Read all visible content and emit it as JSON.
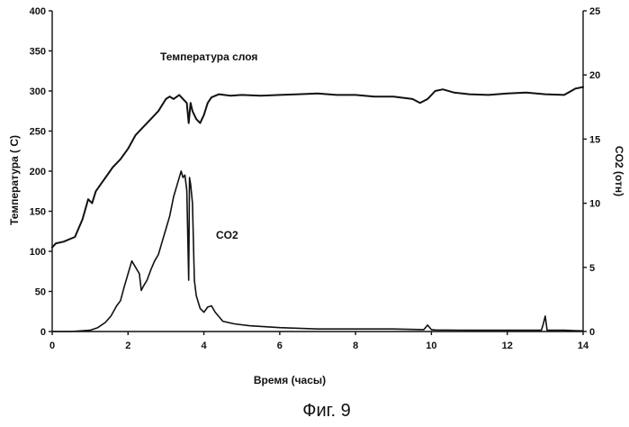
{
  "figure_caption": "Фиг. 9",
  "chart_data": {
    "type": "line",
    "title": "",
    "xlabel": "Время (часы)",
    "ylabel_left": "Температура ( С)",
    "ylabel_right": "CO2 (отн)",
    "xlim": [
      0,
      14
    ],
    "ylim_left": [
      0,
      400
    ],
    "ylim_right": [
      0,
      25
    ],
    "x_ticks": [
      "0",
      "2",
      "4",
      "6",
      "8",
      "10",
      "12",
      "14"
    ],
    "y_left_ticks": [
      "0",
      "50",
      "100",
      "150",
      "200",
      "250",
      "300",
      "350",
      "400"
    ],
    "y_right_ticks": [
      "0",
      "5",
      "10",
      "15",
      "20",
      "25"
    ],
    "grid": false,
    "annotations": [
      {
        "text": "Температура слоя",
        "series": "temperature"
      },
      {
        "text": "CO2",
        "series": "co2"
      }
    ],
    "series": [
      {
        "id": "temperature",
        "axis": "left",
        "x": [
          0,
          0.1,
          0.3,
          0.6,
          0.8,
          0.95,
          1.05,
          1.15,
          1.3,
          1.45,
          1.6,
          1.8,
          2.0,
          2.2,
          2.4,
          2.6,
          2.8,
          3.0,
          3.1,
          3.2,
          3.35,
          3.45,
          3.55,
          3.6,
          3.65,
          3.7,
          3.8,
          3.9,
          4.0,
          4.1,
          4.2,
          4.4,
          4.7,
          5.0,
          5.5,
          6.0,
          6.5,
          7.0,
          7.5,
          8.0,
          8.5,
          9.0,
          9.5,
          9.7,
          9.9,
          10.1,
          10.3,
          10.6,
          11.0,
          11.5,
          12.0,
          12.5,
          13.0,
          13.5,
          13.8,
          14.0
        ],
        "y": [
          105,
          110,
          112,
          118,
          140,
          165,
          160,
          175,
          185,
          195,
          205,
          215,
          228,
          245,
          255,
          265,
          275,
          290,
          293,
          290,
          295,
          290,
          285,
          260,
          285,
          275,
          265,
          260,
          270,
          285,
          292,
          296,
          294,
          295,
          294,
          295,
          296,
          297,
          295,
          295,
          293,
          293,
          290,
          285,
          290,
          300,
          302,
          298,
          296,
          295,
          297,
          298,
          296,
          295,
          303,
          305
        ]
      },
      {
        "id": "co2",
        "axis": "right",
        "x": [
          0,
          0.5,
          1.0,
          1.2,
          1.4,
          1.55,
          1.7,
          1.8,
          1.9,
          2.0,
          2.1,
          2.2,
          2.3,
          2.35,
          2.4,
          2.5,
          2.6,
          2.7,
          2.8,
          2.9,
          3.0,
          3.1,
          3.2,
          3.3,
          3.4,
          3.45,
          3.5,
          3.55,
          3.6,
          3.62,
          3.65,
          3.7,
          3.75,
          3.8,
          3.9,
          4.0,
          4.1,
          4.2,
          4.3,
          4.5,
          4.8,
          5.2,
          6.0,
          7.0,
          8.0,
          9.0,
          9.8,
          9.9,
          10.0,
          10.1,
          11.0,
          12.0,
          12.9,
          12.95,
          13.0,
          13.05,
          13.5,
          14.0
        ],
        "y": [
          0,
          0,
          0.1,
          0.3,
          0.7,
          1.2,
          2.0,
          2.4,
          3.5,
          4.5,
          5.5,
          5.0,
          4.5,
          3.2,
          3.5,
          4.0,
          4.8,
          5.5,
          6.0,
          7.0,
          8.0,
          9.0,
          10.5,
          11.5,
          12.5,
          12.0,
          12.2,
          11.0,
          4.0,
          12.0,
          11.5,
          10.0,
          4.0,
          2.8,
          1.8,
          1.5,
          1.9,
          2.0,
          1.5,
          0.8,
          0.6,
          0.45,
          0.3,
          0.2,
          0.2,
          0.2,
          0.15,
          0.5,
          0.15,
          0.12,
          0.1,
          0.1,
          0.1,
          0.6,
          1.2,
          0.1,
          0.1,
          0.05
        ]
      }
    ]
  }
}
